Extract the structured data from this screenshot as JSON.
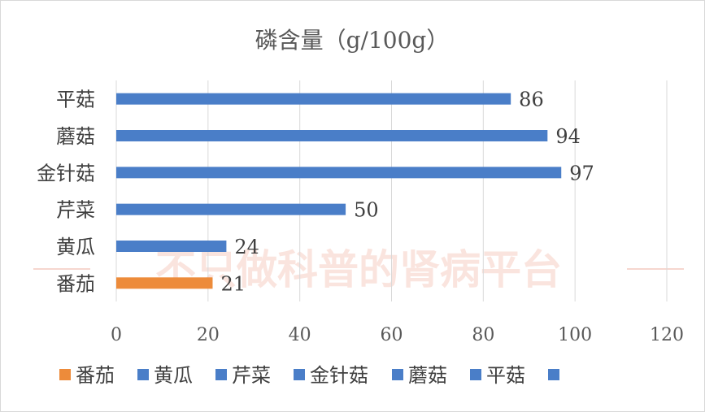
{
  "chart_data": {
    "type": "bar",
    "orientation": "horizontal",
    "title": "磷含量（g/100g）",
    "categories": [
      "番茄",
      "黄瓜",
      "芹菜",
      "金针菇",
      "蘑菇",
      "平菇"
    ],
    "values": [
      21,
      24,
      50,
      97,
      94,
      86
    ],
    "bar_colors": [
      "#ED8B3A",
      "#4A7EC8",
      "#4A7EC8",
      "#4A7EC8",
      "#4A7EC8",
      "#4A7EC8"
    ],
    "xlim": [
      0,
      120
    ],
    "x_ticks": [
      0,
      20,
      40,
      60,
      80,
      100,
      120
    ],
    "grid": true,
    "legend_position": "bottom",
    "legend": [
      {
        "label": "番茄",
        "color": "#ED8B3A"
      },
      {
        "label": "黄瓜",
        "color": "#4A7EC8"
      },
      {
        "label": "芹菜",
        "color": "#4A7EC8"
      },
      {
        "label": "金针菇",
        "color": "#4A7EC8"
      },
      {
        "label": "蘑菇",
        "color": "#4A7EC8"
      },
      {
        "label": "平菇",
        "color": "#4A7EC8"
      },
      {
        "label": "",
        "color": "#4A7EC8"
      }
    ],
    "watermark_text": "不只做科普的肾病平台"
  }
}
